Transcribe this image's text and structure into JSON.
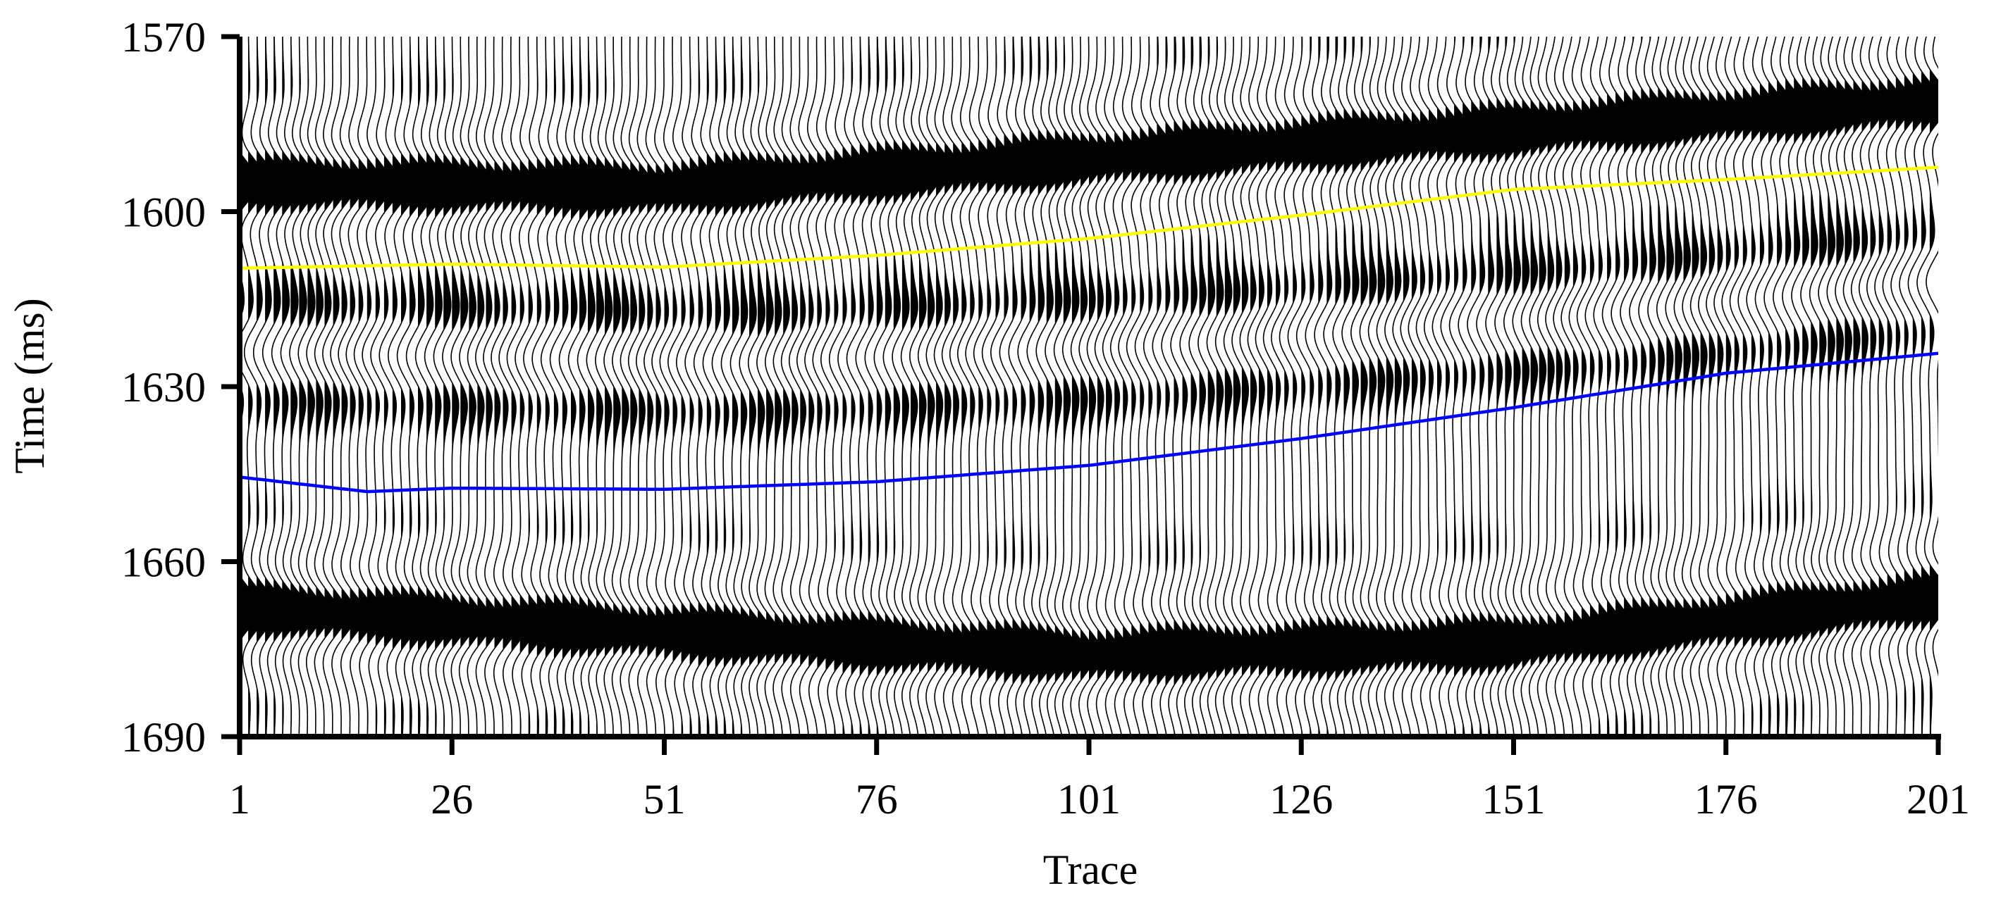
{
  "chart_data": {
    "type": "seismic-wiggle",
    "xlabel": "Trace",
    "ylabel": "Time (ms)",
    "x_ticks": [
      1,
      26,
      51,
      76,
      101,
      126,
      151,
      176,
      201
    ],
    "y_ticks": [
      1570,
      1600,
      1630,
      1660,
      1690
    ],
    "xlim": [
      1,
      201
    ],
    "ylim": [
      1570,
      1690
    ],
    "y_inverted": true,
    "trace_count": 201,
    "horizons": [
      {
        "color": "#ffff00",
        "points": [
          {
            "x": 1,
            "y": 1609.7
          },
          {
            "x": 26,
            "y": 1609.0
          },
          {
            "x": 51,
            "y": 1609.5
          },
          {
            "x": 76,
            "y": 1607.5
          },
          {
            "x": 101,
            "y": 1604.6
          },
          {
            "x": 126,
            "y": 1600.6
          },
          {
            "x": 151,
            "y": 1596.2
          },
          {
            "x": 176,
            "y": 1594.5
          },
          {
            "x": 201,
            "y": 1592.4
          }
        ]
      },
      {
        "color": "#0000ff",
        "points": [
          {
            "x": 1,
            "y": 1645.5
          },
          {
            "x": 16,
            "y": 1648.0
          },
          {
            "x": 26,
            "y": 1647.4
          },
          {
            "x": 51,
            "y": 1647.6
          },
          {
            "x": 76,
            "y": 1646.3
          },
          {
            "x": 101,
            "y": 1643.5
          },
          {
            "x": 126,
            "y": 1638.9
          },
          {
            "x": 151,
            "y": 1633.6
          },
          {
            "x": 176,
            "y": 1627.7
          },
          {
            "x": 201,
            "y": 1624.3
          }
        ]
      }
    ],
    "reflectors": [
      {
        "points": [
          {
            "x": 1,
            "y": 1595
          },
          {
            "x": 50,
            "y": 1596
          },
          {
            "x": 100,
            "y": 1591
          },
          {
            "x": 150,
            "y": 1586
          },
          {
            "x": 201,
            "y": 1581
          }
        ],
        "amp": 1.0
      },
      {
        "points": [
          {
            "x": 1,
            "y": 1668
          },
          {
            "x": 50,
            "y": 1672
          },
          {
            "x": 100,
            "y": 1676
          },
          {
            "x": 150,
            "y": 1674
          },
          {
            "x": 201,
            "y": 1666
          }
        ],
        "amp": 1.0
      },
      {
        "points": [
          {
            "x": 1,
            "y": 1624
          },
          {
            "x": 60,
            "y": 1626
          },
          {
            "x": 110,
            "y": 1623
          },
          {
            "x": 160,
            "y": 1618
          },
          {
            "x": 201,
            "y": 1612
          }
        ],
        "amp": -0.7
      }
    ]
  }
}
